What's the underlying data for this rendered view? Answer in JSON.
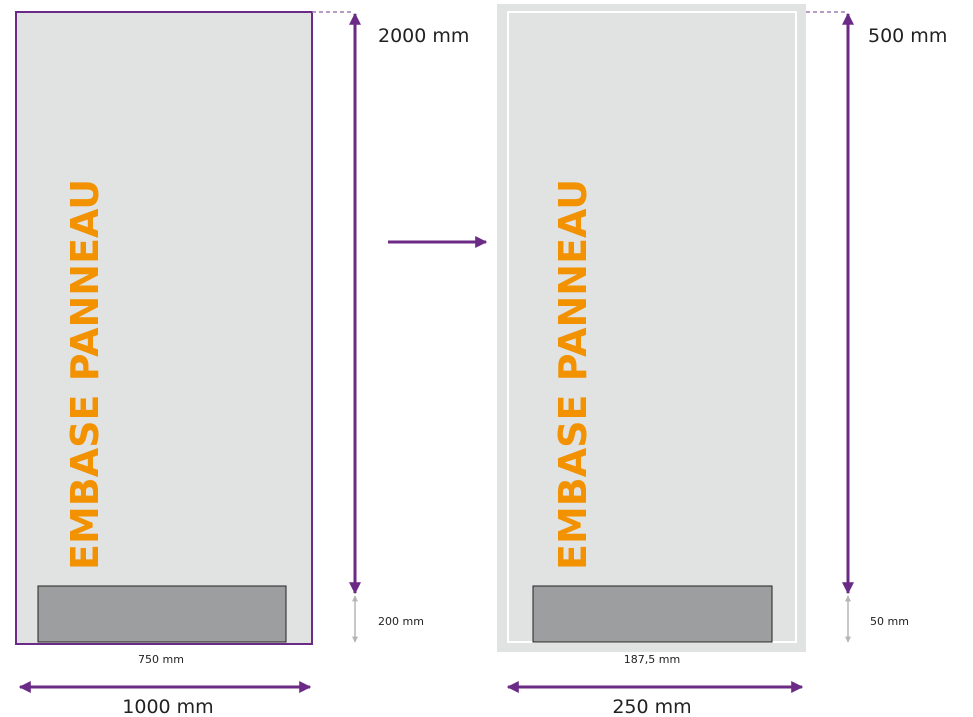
{
  "colors": {
    "panel_fill": "#e1e2e2",
    "outer_frame": "#e1e2e2",
    "border_purple": "#6b2a86",
    "inner_border_white": "#ffffff",
    "base_fill": "#9d9e9f",
    "text_orange": "#f39200",
    "arrow_purple": "#6b2a86",
    "arrow_grey": "#b5b5b5",
    "dash_purple": "#a27bb4"
  },
  "left_panel": {
    "title": "EMBASE PANNEAU",
    "height_label": "2000 mm",
    "width_label": "1000 mm",
    "base_width_label": "750 mm",
    "base_height_label": "200 mm"
  },
  "right_panel": {
    "title": "EMBASE PANNEAU",
    "height_label": "500 mm",
    "width_label": "250 mm",
    "base_width_label": "187,5 mm",
    "base_height_label": "50 mm"
  }
}
